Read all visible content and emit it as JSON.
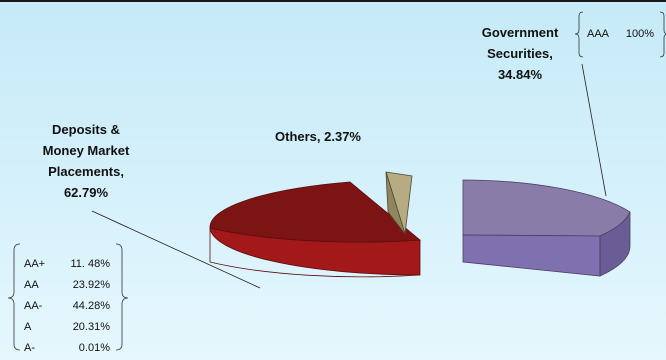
{
  "chart_data": {
    "type": "pie",
    "style": "3d-exploded",
    "slices": [
      {
        "name": "Deposits & Money Market Placements",
        "value": 62.79,
        "label_lines": [
          "Deposits &",
          "Money Market",
          "Placements,",
          "62.79%"
        ],
        "color": "#8b1a1a"
      },
      {
        "name": "Government Securities",
        "value": 34.84,
        "label_lines": [
          "Government",
          "Securities,",
          "34.84%"
        ],
        "color": "#8a7ca9"
      },
      {
        "name": "Others",
        "value": 2.37,
        "label_lines": [
          "Others, 2.37%"
        ],
        "color": "#b7ab82"
      }
    ],
    "rating_breakdowns": [
      {
        "slice": "Government Securities",
        "rows": [
          {
            "rating": "AAA",
            "pct": "100%"
          }
        ]
      },
      {
        "slice": "Deposits & Money Market Placements",
        "rows": [
          {
            "rating": "AA+",
            "pct": "11. 48%"
          },
          {
            "rating": "AA",
            "pct": "23.92%"
          },
          {
            "rating": "AA-",
            "pct": "44.28%"
          },
          {
            "rating": "A",
            "pct": "20.31%"
          },
          {
            "rating": "A-",
            "pct": "0.01%"
          }
        ]
      }
    ]
  }
}
